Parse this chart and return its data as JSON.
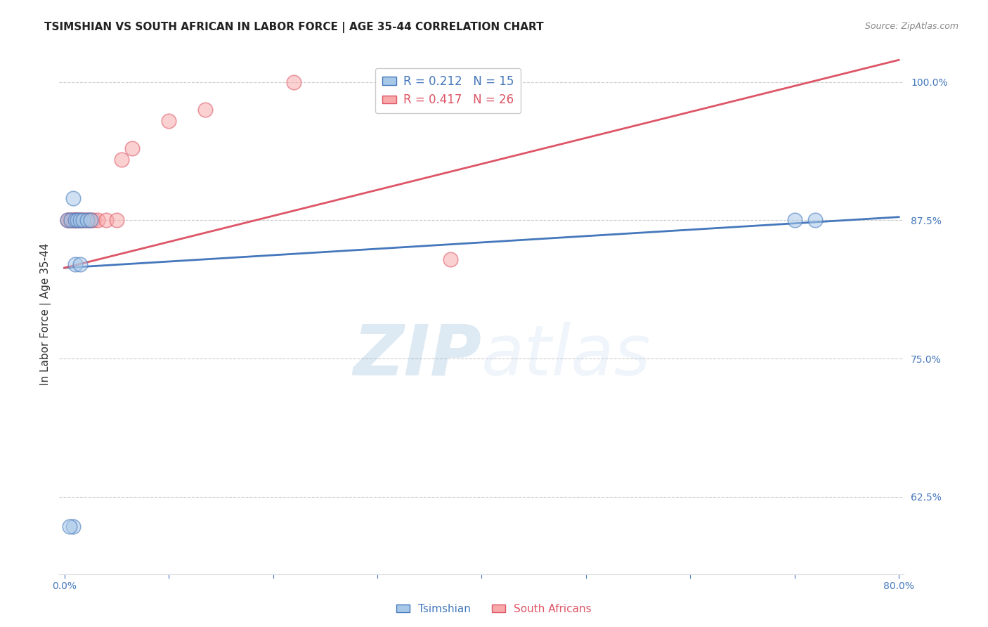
{
  "title": "TSIMSHIAN VS SOUTH AFRICAN IN LABOR FORCE | AGE 35-44 CORRELATION CHART",
  "source": "Source: ZipAtlas.com",
  "xlabel": "",
  "ylabel": "In Labor Force | Age 35-44",
  "xlim": [
    -0.005,
    0.805
  ],
  "ylim": [
    0.555,
    1.025
  ],
  "yticks": [
    0.625,
    0.75,
    0.875,
    1.0
  ],
  "ytick_labels": [
    "62.5%",
    "75.0%",
    "87.5%",
    "100.0%"
  ],
  "xticks": [
    0.0,
    0.1,
    0.2,
    0.3,
    0.4,
    0.5,
    0.6,
    0.7,
    0.8
  ],
  "xtick_labels": [
    "0.0%",
    "",
    "",
    "",
    "",
    "",
    "",
    "",
    "80.0%"
  ],
  "tsimshian_x": [
    0.003,
    0.006,
    0.01,
    0.012,
    0.015,
    0.018,
    0.022,
    0.025,
    0.01,
    0.015,
    0.008,
    0.7,
    0.72,
    0.008,
    0.005
  ],
  "tsimshian_y": [
    0.875,
    0.875,
    0.875,
    0.875,
    0.875,
    0.875,
    0.875,
    0.875,
    0.835,
    0.835,
    0.895,
    0.875,
    0.875,
    0.598,
    0.598
  ],
  "south_african_x": [
    0.003,
    0.005,
    0.006,
    0.008,
    0.009,
    0.01,
    0.011,
    0.012,
    0.013,
    0.015,
    0.016,
    0.018,
    0.02,
    0.022,
    0.024,
    0.025,
    0.028,
    0.032,
    0.04,
    0.05,
    0.055,
    0.065,
    0.1,
    0.135,
    0.22,
    0.37
  ],
  "south_african_y": [
    0.875,
    0.875,
    0.875,
    0.875,
    0.875,
    0.875,
    0.875,
    0.875,
    0.875,
    0.875,
    0.875,
    0.875,
    0.875,
    0.875,
    0.875,
    0.875,
    0.875,
    0.875,
    0.875,
    0.875,
    0.93,
    0.94,
    0.965,
    0.975,
    1.0,
    0.84
  ],
  "blue_line_x": [
    0.0,
    0.8
  ],
  "blue_line_y": [
    0.832,
    0.878
  ],
  "pink_line_x": [
    0.0,
    0.8
  ],
  "pink_line_y": [
    0.832,
    1.02
  ],
  "tsimshian_R": 0.212,
  "tsimshian_N": 15,
  "south_african_R": 0.417,
  "south_african_N": 26,
  "blue_fill": "#A8C8E8",
  "blue_edge": "#4477BB",
  "pink_fill": "#F8AAAA",
  "pink_edge": "#DD5566",
  "blue_line_color": "#4477BB",
  "pink_line_color": "#DD5566",
  "watermark_color": "#B8D4EE",
  "background_color": "#FFFFFF",
  "grid_color": "#CCCCCC",
  "axis_label_color": "#4477BB",
  "title_color": "#222222",
  "source_color": "#888888"
}
